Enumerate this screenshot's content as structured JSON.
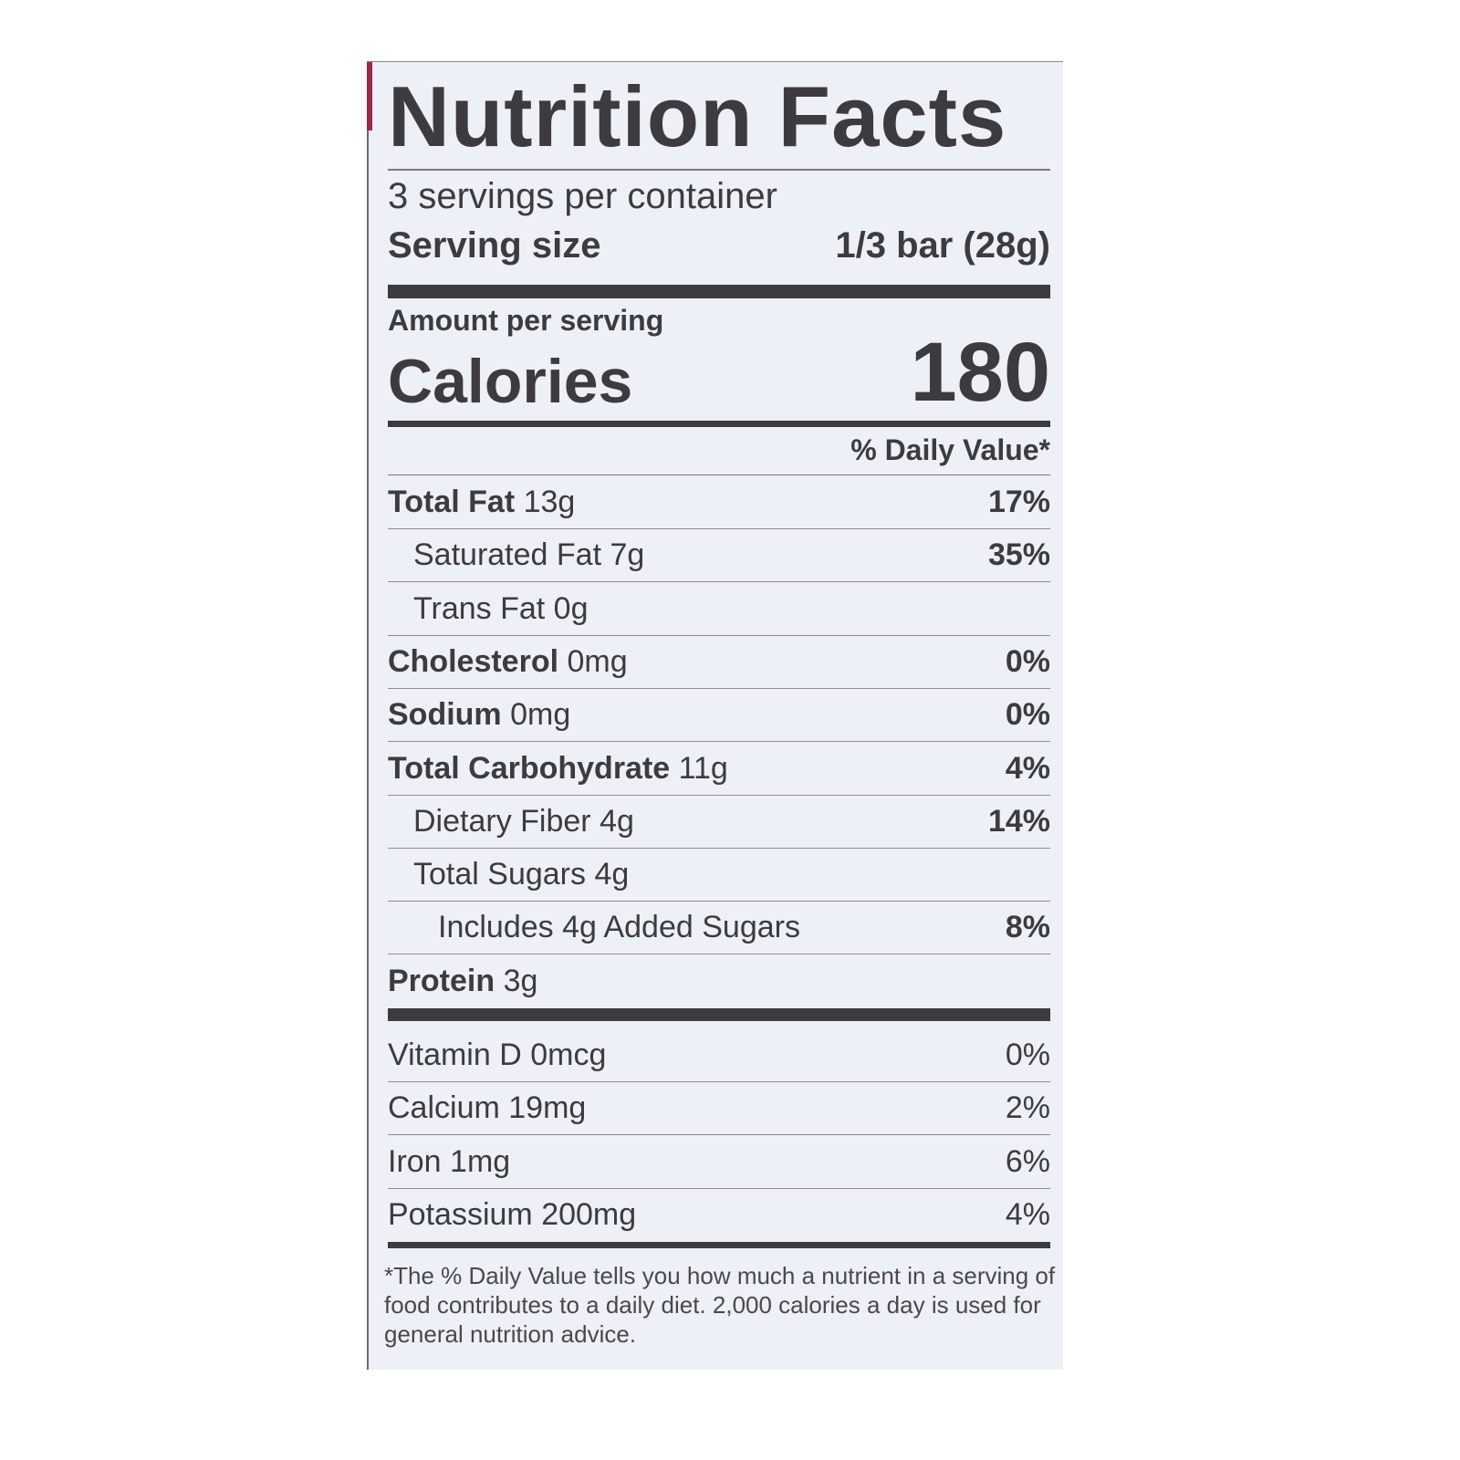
{
  "label": {
    "title": "Nutrition Facts",
    "servings_per_container": "3 servings per container",
    "serving_size_label": "Serving size",
    "serving_size_value": "1/3 bar (28g)",
    "amount_per_serving": "Amount per serving",
    "calories_label": "Calories",
    "calories_value": "180",
    "daily_value_header": "% Daily Value*",
    "nutrients": [
      {
        "name": "Total Fat",
        "amount": "13g",
        "dv": "17%",
        "bold": true,
        "indent": 0
      },
      {
        "name": "Saturated Fat",
        "amount": "7g",
        "dv": "35%",
        "bold": false,
        "indent": 1
      },
      {
        "name": "Trans Fat",
        "amount": "0g",
        "dv": "",
        "bold": false,
        "indent": 1
      },
      {
        "name": "Cholesterol",
        "amount": "0mg",
        "dv": "0%",
        "bold": true,
        "indent": 0
      },
      {
        "name": "Sodium",
        "amount": "0mg",
        "dv": "0%",
        "bold": true,
        "indent": 0
      },
      {
        "name": "Total Carbohydrate",
        "amount": "11g",
        "dv": "4%",
        "bold": true,
        "indent": 0
      },
      {
        "name": "Dietary Fiber",
        "amount": "4g",
        "dv": "14%",
        "bold": false,
        "indent": 1
      },
      {
        "name": "Total Sugars",
        "amount": "4g",
        "dv": "",
        "bold": false,
        "indent": 1
      },
      {
        "name": "Includes 4g Added Sugars",
        "amount": "",
        "dv": "8%",
        "bold": false,
        "indent": 2
      },
      {
        "name": "Protein",
        "amount": "3g",
        "dv": "",
        "bold": true,
        "indent": 0
      }
    ],
    "vitamins": [
      {
        "name": "Vitamin D",
        "amount": "0mcg",
        "dv": "0%"
      },
      {
        "name": "Calcium",
        "amount": "19mg",
        "dv": "2%"
      },
      {
        "name": "Iron",
        "amount": "1mg",
        "dv": "6%"
      },
      {
        "name": "Potassium",
        "amount": "200mg",
        "dv": "4%"
      }
    ],
    "footnote": "*The % Daily Value tells you how much a nutrient in a serving of food contributes to a daily diet. 2,000 calories a day is used for general nutrition advice.",
    "colors": {
      "text": "#3d3b3f",
      "background": "#eef0f7",
      "package_edge": "#9c2847"
    }
  }
}
